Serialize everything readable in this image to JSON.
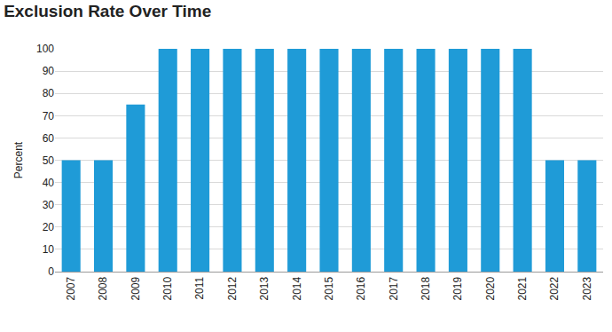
{
  "chart_data": {
    "type": "bar",
    "title": "Exclusion Rate Over Time",
    "y_label": "Percent",
    "categories": [
      "2007",
      "2008",
      "2009",
      "2010",
      "2011",
      "2012",
      "2013",
      "2014",
      "2015",
      "2016",
      "2017",
      "2018",
      "2019",
      "2020",
      "2021",
      "2022",
      "2023"
    ],
    "values": [
      50,
      50,
      75,
      100,
      100,
      100,
      100,
      100,
      100,
      100,
      100,
      100,
      100,
      100,
      100,
      50,
      50
    ],
    "color": "#1f9bd7",
    "ylim": [
      0,
      100
    ],
    "yticks": [
      0,
      10,
      20,
      30,
      40,
      50,
      60,
      70,
      80,
      90,
      100
    ],
    "grid": true
  }
}
